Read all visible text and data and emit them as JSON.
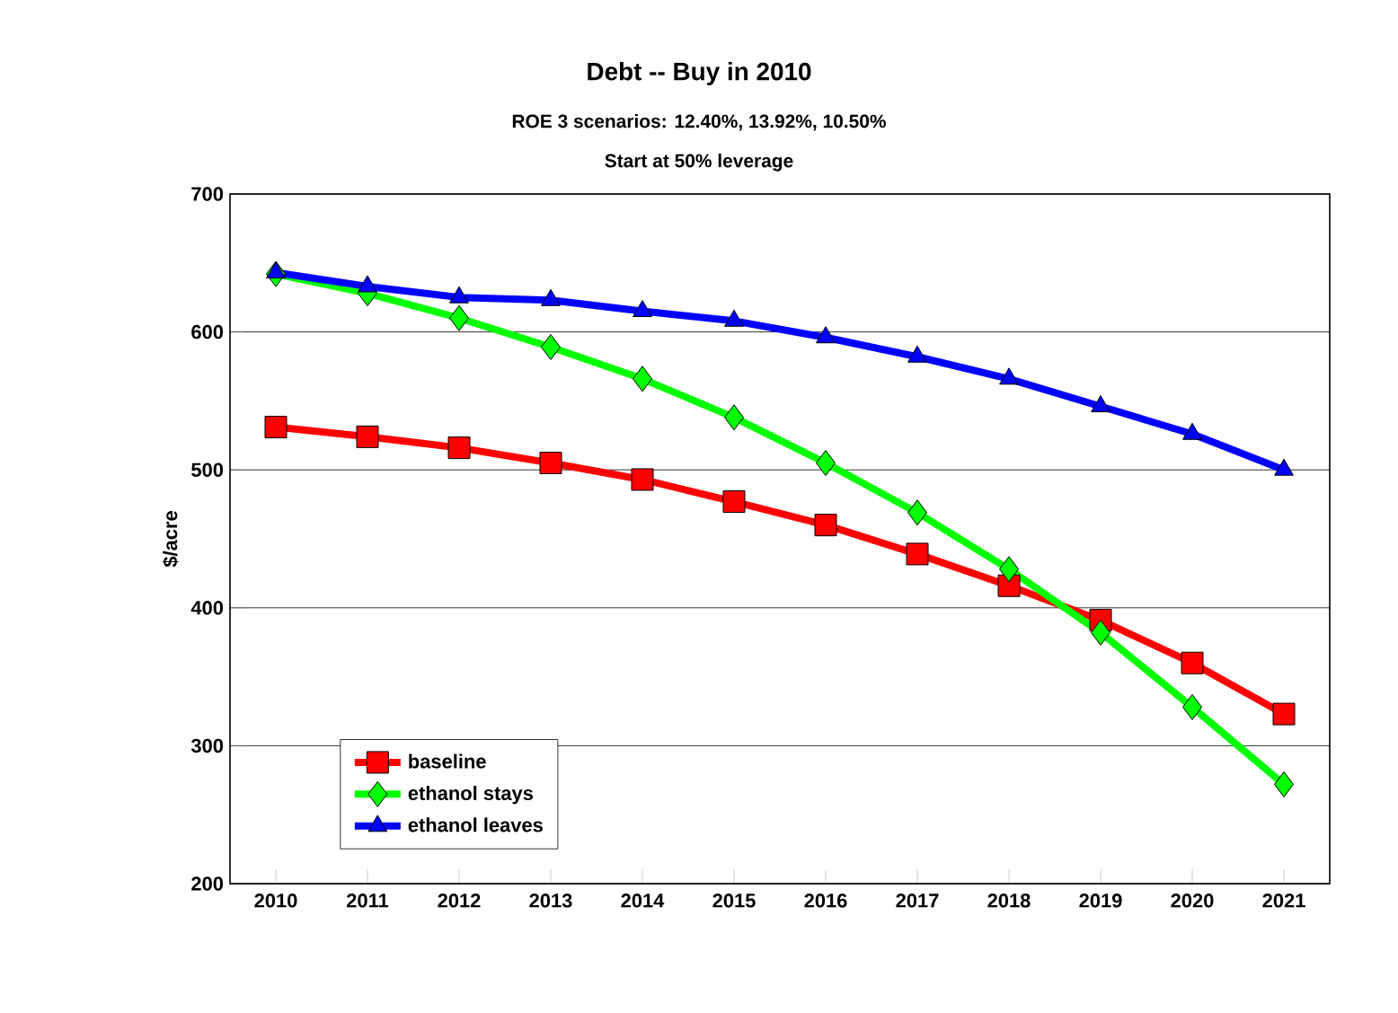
{
  "chart_data": {
    "type": "line",
    "title": "Debt -- Buy in 2010",
    "subtitle": [
      "ROE 3 scenarios:  12.40%, 13.92%, 10.50%",
      "Start at 50% leverage"
    ],
    "ylabel": "$/acre",
    "x": [
      2010,
      2011,
      2012,
      2013,
      2014,
      2015,
      2016,
      2017,
      2018,
      2019,
      2020,
      2021
    ],
    "xlim": [
      2009.5,
      2021.5
    ],
    "xticks": [
      2010,
      2011,
      2012,
      2013,
      2014,
      2015,
      2016,
      2017,
      2018,
      2019,
      2020,
      2021
    ],
    "ylim": [
      200,
      700
    ],
    "yticks": [
      200,
      300,
      400,
      500,
      600,
      700
    ],
    "grid": "y",
    "legend": "bottom left",
    "line_style": "solid",
    "series": [
      {
        "name": "baseline",
        "color": "#ff0000",
        "marker": "square",
        "values": [
          531,
          524,
          516,
          505,
          493,
          477,
          460,
          439,
          416,
          391,
          360,
          323
        ]
      },
      {
        "name": "ethanol stays",
        "color": "#00ff00",
        "marker": "diamond",
        "values": [
          642,
          628,
          610,
          589,
          566,
          538,
          505,
          469,
          428,
          382,
          328,
          272
        ]
      },
      {
        "name": "ethanol leaves",
        "color": "#0000ff",
        "marker": "triangle",
        "values": [
          643,
          633,
          625,
          623,
          615,
          608,
          596,
          582,
          566,
          546,
          526,
          500
        ]
      }
    ]
  }
}
